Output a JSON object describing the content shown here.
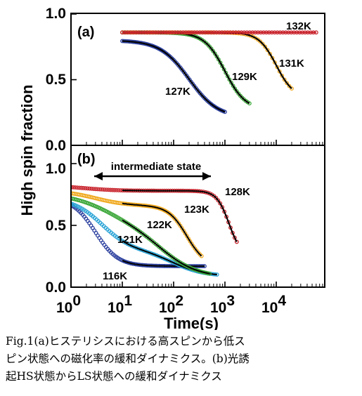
{
  "figure": {
    "y_axis_label": "High spin fraction",
    "x_axis_label": "Time(s)"
  },
  "caption": {
    "line1": "Fig.1(a)ヒステリシスにおける高スピンから低ス",
    "line2": "ピン状態への磁化率の緩和ダイナミクス。(b)光誘",
    "line3": "起HS状態からLS状態への緩和ダイナミクス"
  },
  "chart_data": [
    {
      "type": "scatter",
      "panel_label": "(a)",
      "x_scale": "log",
      "xlim": [
        1,
        60000
      ],
      "ylim": [
        0,
        1.0
      ],
      "y_ticks": [
        "0.0",
        "0.5",
        "1.0"
      ],
      "x_ticks": [
        "10^0",
        "10^1",
        "10^2",
        "10^3",
        "10^4"
      ],
      "series": [
        {
          "name": "127K",
          "color": "#2b3f9e",
          "x_start": 10,
          "x_end": 1000,
          "y_start": 0.8,
          "y_end": 0.21,
          "t_mid": 200,
          "width": 0.28
        },
        {
          "name": "129K",
          "color": "#3aa637",
          "x_start": 10,
          "x_end": 3000,
          "y_start": 0.86,
          "y_end": 0.27,
          "t_mid": 1000,
          "width": 0.2
        },
        {
          "name": "131K",
          "color": "#f0a81c",
          "x_start": 10,
          "x_end": 20000,
          "y_start": 0.86,
          "y_end": 0.36,
          "t_mid": 10000,
          "width": 0.17
        },
        {
          "name": "132K",
          "color": "#c8232c",
          "x_start": 10,
          "x_end": 60000,
          "y_start": 0.86,
          "y_end": 0.86,
          "t_mid": 1000000,
          "width": 0.2
        }
      ]
    },
    {
      "type": "scatter",
      "panel_label": "(b)",
      "annotation": "intermediate state",
      "x_scale": "log",
      "xlim": [
        1,
        60000
      ],
      "ylim": [
        0,
        1.2
      ],
      "y_ticks": [
        "0.0",
        "0.5",
        "1.0"
      ],
      "x_ticks": [
        "10^0",
        "10^1",
        "10^2",
        "10^3",
        "10^4"
      ],
      "series": [
        {
          "name": "116K",
          "color": "#2b3f9e",
          "steps": [
            {
              "from": 0.72,
              "to": 0.17,
              "t_mid": 3,
              "width": 0.22
            }
          ],
          "final": 0.17,
          "x_end": 400
        },
        {
          "name": "121K",
          "color": "#29a3d6",
          "steps": [
            {
              "from": 0.72,
              "to": 0.3,
              "t_mid": 4,
              "width": 0.28
            },
            {
              "from": 0.3,
              "to": 0.09,
              "t_mid": 100,
              "width": 0.3
            }
          ],
          "final": 0.09,
          "x_end": 700
        },
        {
          "name": "122K",
          "color": "#3aa637",
          "steps": [
            {
              "from": 0.76,
              "to": 0.5,
              "t_mid": 5,
              "width": 0.4
            },
            {
              "from": 0.5,
              "to": 0.08,
              "t_mid": 60,
              "width": 0.35
            }
          ],
          "final": 0.08,
          "x_end": 500
        },
        {
          "name": "123K",
          "color": "#f0a81c",
          "steps": [
            {
              "from": 0.78,
              "to": 0.66,
              "t_mid": 3,
              "width": 0.3
            },
            {
              "from": 0.66,
              "to": 0.17,
              "t_mid": 180,
              "width": 0.18
            }
          ],
          "final": 0.17,
          "x_end": 350
        },
        {
          "name": "128K",
          "color": "#c8232c",
          "steps": [
            {
              "from": 0.82,
              "to": 0.78,
              "t_mid": 2,
              "width": 0.3
            },
            {
              "from": 0.78,
              "to": 0.25,
              "t_mid": 1200,
              "width": 0.12
            }
          ],
          "final": 0.25,
          "x_end": 1700
        }
      ]
    }
  ]
}
